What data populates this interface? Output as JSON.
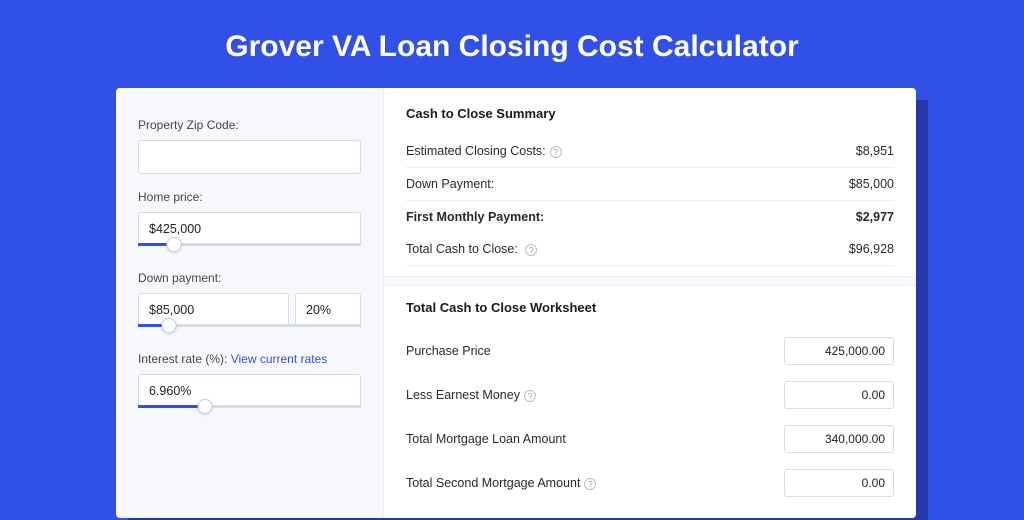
{
  "colors": {
    "page_bg": "#3050e8",
    "shadow_bg": "#2538a8",
    "card_bg": "#ffffff",
    "left_panel_bg": "#f6f8fc",
    "border": "#d7dbe4",
    "divider": "#eceef5",
    "text_primary": "#1a1a1a",
    "text_secondary": "#44464a",
    "link": "#3050e8",
    "slider_fill": "#3050e8",
    "slider_track": "#d7dbe4"
  },
  "header": {
    "title": "Grover VA Loan Closing Cost Calculator"
  },
  "form": {
    "zip": {
      "label": "Property Zip Code:",
      "value": ""
    },
    "home_price": {
      "label": "Home price:",
      "value": "$425,000",
      "slider_pct": 16
    },
    "down_payment": {
      "label": "Down payment:",
      "value": "$85,000",
      "pct_value": "20%",
      "slider_pct": 14
    },
    "interest_rate": {
      "label": "Interest rate (%):",
      "link_text": "View current rates",
      "value": "6.960%",
      "slider_pct": 30
    }
  },
  "summary": {
    "title": "Cash to Close Summary",
    "rows": [
      {
        "label": "Estimated Closing Costs:",
        "help": true,
        "value": "$8,951"
      },
      {
        "label": "Down Payment:",
        "help": false,
        "value": "$85,000"
      },
      {
        "label": "First Monthly Payment:",
        "help": false,
        "value": "$2,977"
      }
    ],
    "total": {
      "label": "Total Cash to Close:",
      "help": true,
      "value": "$96,928"
    }
  },
  "worksheet": {
    "title": "Total Cash to Close Worksheet",
    "rows": [
      {
        "label": "Purchase Price",
        "help": false,
        "value": "425,000.00"
      },
      {
        "label": "Less Earnest Money",
        "help": true,
        "value": "0.00"
      },
      {
        "label": "Total Mortgage Loan Amount",
        "help": false,
        "value": "340,000.00"
      },
      {
        "label": "Total Second Mortgage Amount",
        "help": true,
        "value": "0.00"
      }
    ]
  }
}
